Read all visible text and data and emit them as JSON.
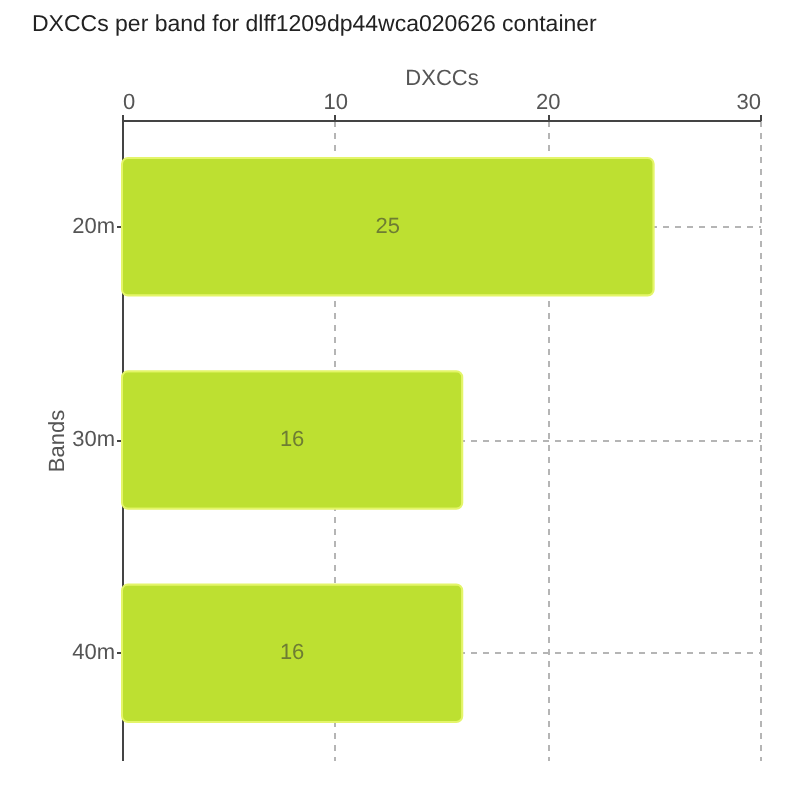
{
  "chart_data": {
    "type": "bar",
    "orientation": "horizontal",
    "title": "DXCCs per band for dlff1209dp44wca020626 container",
    "xlabel": "DXCCs",
    "ylabel": "Bands",
    "categories": [
      "20m",
      "30m",
      "40m"
    ],
    "values": [
      25,
      16,
      16
    ],
    "color": "#bde031",
    "xlim": [
      0,
      30
    ],
    "xticks": [
      0,
      10,
      20,
      30
    ],
    "grid": true,
    "data_labels": true
  }
}
